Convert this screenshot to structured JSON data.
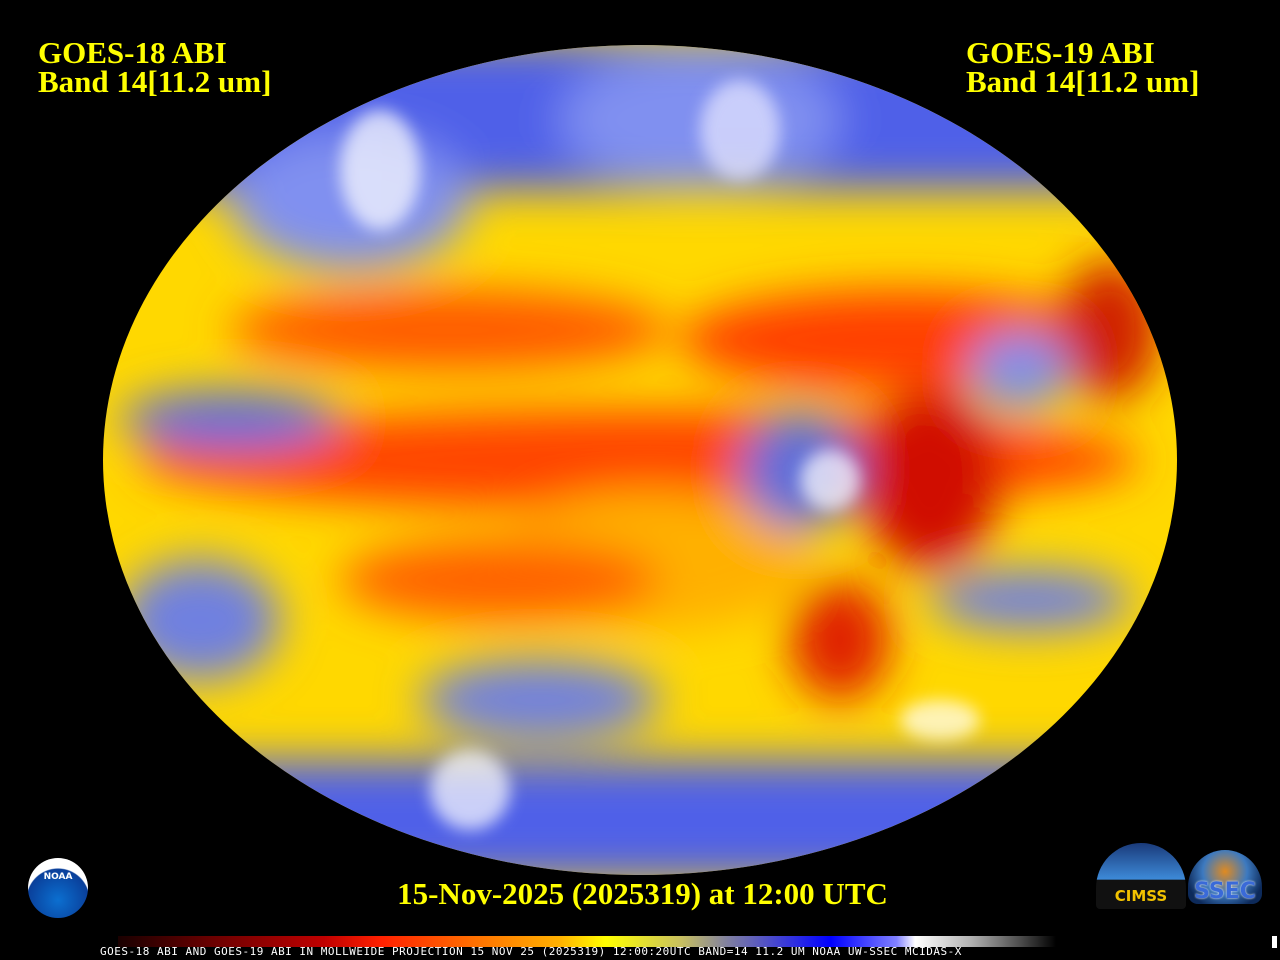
{
  "left_title": {
    "line1": "GOES-18 ABI",
    "line2": "Band 14[11.2 um]"
  },
  "right_title": {
    "line1": "GOES-19 ABI",
    "line2": "Band 14[11.2 um]"
  },
  "date_label": "15-Nov-2025 (2025319) at 12:00 UTC",
  "footer_text": "GOES-18 ABI AND GOES-19 ABI IN MOLLWEIDE PROJECTION 15 NOV 25 (2025319) 12:00:20UTC BAND=14 11.2 UM NOAA UW-SSEC MCIDAS-X",
  "logos": {
    "noaa": "NOAA",
    "cimss": "CIMSS",
    "ssec": "SSEC"
  },
  "colors": {
    "title": "#ffff00",
    "background": "#000000",
    "warm": "#ff2000",
    "cold": "#0000ff"
  }
}
